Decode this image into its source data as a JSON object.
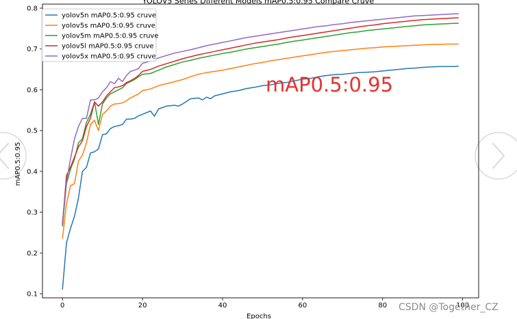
{
  "chart_data": {
    "type": "line",
    "title": "YOLOV5 Series Different Models mAP0.5:0.95 Compare Cruve",
    "xlabel": "Epochs",
    "ylabel": "mAP0.5:0.95",
    "xlim": [
      -5,
      104
    ],
    "ylim": [
      0.09,
      0.81
    ],
    "x_ticks": [
      0,
      20,
      40,
      60,
      80,
      100
    ],
    "y_ticks": [
      0.1,
      0.2,
      0.3,
      0.4,
      0.5,
      0.6,
      0.7,
      0.8
    ],
    "grid": false,
    "legend_position": "top-left",
    "annotation": "mAP0.5:0.95",
    "series": [
      {
        "name": "yolov5n mAP0.5:0.95 cruve",
        "color": "#1f77b4",
        "points": [
          [
            0,
            0.11
          ],
          [
            1,
            0.225
          ],
          [
            2,
            0.26
          ],
          [
            3,
            0.29
          ],
          [
            4,
            0.335
          ],
          [
            5,
            0.4
          ],
          [
            6,
            0.41
          ],
          [
            7,
            0.445
          ],
          [
            8,
            0.448
          ],
          [
            9,
            0.455
          ],
          [
            10,
            0.49
          ],
          [
            11,
            0.492
          ],
          [
            12,
            0.505
          ],
          [
            13,
            0.51
          ],
          [
            14,
            0.512
          ],
          [
            15,
            0.515
          ],
          [
            16,
            0.528
          ],
          [
            17,
            0.528
          ],
          [
            18,
            0.53
          ],
          [
            19,
            0.536
          ],
          [
            20,
            0.54
          ],
          [
            22,
            0.548
          ],
          [
            23,
            0.535
          ],
          [
            24,
            0.553
          ],
          [
            26,
            0.56
          ],
          [
            28,
            0.562
          ],
          [
            29,
            0.56
          ],
          [
            30,
            0.565
          ],
          [
            32,
            0.578
          ],
          [
            34,
            0.58
          ],
          [
            35,
            0.575
          ],
          [
            36,
            0.582
          ],
          [
            37,
            0.578
          ],
          [
            38,
            0.585
          ],
          [
            40,
            0.59
          ],
          [
            42,
            0.595
          ],
          [
            44,
            0.598
          ],
          [
            46,
            0.603
          ],
          [
            48,
            0.606
          ],
          [
            50,
            0.61
          ],
          [
            52,
            0.612
          ],
          [
            54,
            0.616
          ],
          [
            56,
            0.618
          ],
          [
            58,
            0.622
          ],
          [
            60,
            0.626
          ],
          [
            62,
            0.628
          ],
          [
            64,
            0.632
          ],
          [
            66,
            0.635
          ],
          [
            68,
            0.637
          ],
          [
            70,
            0.638
          ],
          [
            72,
            0.64
          ],
          [
            74,
            0.642
          ],
          [
            76,
            0.643
          ],
          [
            78,
            0.644
          ],
          [
            80,
            0.646
          ],
          [
            82,
            0.648
          ],
          [
            84,
            0.65
          ],
          [
            86,
            0.652
          ],
          [
            88,
            0.653
          ],
          [
            90,
            0.655
          ],
          [
            92,
            0.656
          ],
          [
            94,
            0.657
          ],
          [
            96,
            0.657
          ],
          [
            98,
            0.657
          ],
          [
            99,
            0.658
          ]
        ]
      },
      {
        "name": "yolov5s mAP0.5:0.95 cruve",
        "color": "#ff7f0e",
        "points": [
          [
            0,
            0.235
          ],
          [
            1,
            0.32
          ],
          [
            2,
            0.365
          ],
          [
            3,
            0.37
          ],
          [
            4,
            0.425
          ],
          [
            5,
            0.44
          ],
          [
            6,
            0.47
          ],
          [
            7,
            0.515
          ],
          [
            8,
            0.525
          ],
          [
            9,
            0.5
          ],
          [
            10,
            0.54
          ],
          [
            11,
            0.548
          ],
          [
            12,
            0.56
          ],
          [
            13,
            0.565
          ],
          [
            14,
            0.566
          ],
          [
            15,
            0.568
          ],
          [
            16,
            0.573
          ],
          [
            17,
            0.58
          ],
          [
            18,
            0.585
          ],
          [
            19,
            0.59
          ],
          [
            20,
            0.598
          ],
          [
            22,
            0.602
          ],
          [
            24,
            0.61
          ],
          [
            26,
            0.615
          ],
          [
            28,
            0.62
          ],
          [
            30,
            0.625
          ],
          [
            32,
            0.632
          ],
          [
            34,
            0.638
          ],
          [
            36,
            0.642
          ],
          [
            38,
            0.645
          ],
          [
            40,
            0.648
          ],
          [
            42,
            0.652
          ],
          [
            44,
            0.656
          ],
          [
            46,
            0.66
          ],
          [
            48,
            0.664
          ],
          [
            50,
            0.667
          ],
          [
            52,
            0.671
          ],
          [
            54,
            0.674
          ],
          [
            56,
            0.677
          ],
          [
            58,
            0.68
          ],
          [
            60,
            0.683
          ],
          [
            62,
            0.686
          ],
          [
            64,
            0.689
          ],
          [
            66,
            0.692
          ],
          [
            68,
            0.694
          ],
          [
            70,
            0.696
          ],
          [
            72,
            0.698
          ],
          [
            74,
            0.7
          ],
          [
            76,
            0.702
          ],
          [
            78,
            0.703
          ],
          [
            80,
            0.705
          ],
          [
            82,
            0.706
          ],
          [
            84,
            0.707
          ],
          [
            86,
            0.708
          ],
          [
            88,
            0.709
          ],
          [
            90,
            0.71
          ],
          [
            92,
            0.711
          ],
          [
            94,
            0.711
          ],
          [
            96,
            0.712
          ],
          [
            98,
            0.712
          ],
          [
            99,
            0.712
          ]
        ]
      },
      {
        "name": "yolov5m mAP0.5:0.95 cruve",
        "color": "#2ca02c",
        "points": [
          [
            0,
            0.265
          ],
          [
            1,
            0.37
          ],
          [
            2,
            0.405
          ],
          [
            3,
            0.43
          ],
          [
            4,
            0.47
          ],
          [
            5,
            0.48
          ],
          [
            6,
            0.52
          ],
          [
            7,
            0.54
          ],
          [
            8,
            0.57
          ],
          [
            9,
            0.515
          ],
          [
            10,
            0.565
          ],
          [
            11,
            0.58
          ],
          [
            12,
            0.59
          ],
          [
            13,
            0.595
          ],
          [
            14,
            0.6
          ],
          [
            15,
            0.605
          ],
          [
            16,
            0.615
          ],
          [
            17,
            0.62
          ],
          [
            18,
            0.625
          ],
          [
            19,
            0.632
          ],
          [
            20,
            0.638
          ],
          [
            22,
            0.64
          ],
          [
            24,
            0.648
          ],
          [
            26,
            0.656
          ],
          [
            28,
            0.662
          ],
          [
            30,
            0.668
          ],
          [
            32,
            0.672
          ],
          [
            34,
            0.677
          ],
          [
            36,
            0.681
          ],
          [
            38,
            0.685
          ],
          [
            40,
            0.689
          ],
          [
            42,
            0.692
          ],
          [
            44,
            0.696
          ],
          [
            46,
            0.7
          ],
          [
            48,
            0.703
          ],
          [
            50,
            0.706
          ],
          [
            52,
            0.709
          ],
          [
            54,
            0.712
          ],
          [
            56,
            0.716
          ],
          [
            58,
            0.719
          ],
          [
            60,
            0.722
          ],
          [
            62,
            0.725
          ],
          [
            64,
            0.728
          ],
          [
            66,
            0.731
          ],
          [
            68,
            0.734
          ],
          [
            70,
            0.737
          ],
          [
            72,
            0.74
          ],
          [
            74,
            0.742
          ],
          [
            76,
            0.745
          ],
          [
            78,
            0.747
          ],
          [
            80,
            0.749
          ],
          [
            82,
            0.751
          ],
          [
            84,
            0.753
          ],
          [
            86,
            0.755
          ],
          [
            88,
            0.757
          ],
          [
            90,
            0.759
          ],
          [
            92,
            0.76
          ],
          [
            94,
            0.761
          ],
          [
            96,
            0.762
          ],
          [
            98,
            0.763
          ],
          [
            99,
            0.763
          ]
        ]
      },
      {
        "name": "yolov5l mAP0.5:0.95 cruve",
        "color": "#d62728",
        "points": [
          [
            0,
            0.27
          ],
          [
            1,
            0.39
          ],
          [
            2,
            0.41
          ],
          [
            3,
            0.435
          ],
          [
            4,
            0.46
          ],
          [
            5,
            0.475
          ],
          [
            6,
            0.51
          ],
          [
            7,
            0.53
          ],
          [
            8,
            0.57
          ],
          [
            9,
            0.56
          ],
          [
            10,
            0.57
          ],
          [
            11,
            0.585
          ],
          [
            12,
            0.595
          ],
          [
            13,
            0.605
          ],
          [
            14,
            0.607
          ],
          [
            15,
            0.61
          ],
          [
            16,
            0.618
          ],
          [
            17,
            0.622
          ],
          [
            18,
            0.628
          ],
          [
            19,
            0.635
          ],
          [
            20,
            0.645
          ],
          [
            22,
            0.65
          ],
          [
            24,
            0.658
          ],
          [
            26,
            0.664
          ],
          [
            28,
            0.67
          ],
          [
            30,
            0.676
          ],
          [
            32,
            0.681
          ],
          [
            34,
            0.686
          ],
          [
            36,
            0.69
          ],
          [
            38,
            0.694
          ],
          [
            40,
            0.698
          ],
          [
            42,
            0.702
          ],
          [
            44,
            0.706
          ],
          [
            46,
            0.71
          ],
          [
            48,
            0.714
          ],
          [
            50,
            0.717
          ],
          [
            52,
            0.72
          ],
          [
            54,
            0.723
          ],
          [
            56,
            0.727
          ],
          [
            58,
            0.73
          ],
          [
            60,
            0.733
          ],
          [
            62,
            0.736
          ],
          [
            64,
            0.739
          ],
          [
            66,
            0.742
          ],
          [
            68,
            0.745
          ],
          [
            70,
            0.748
          ],
          [
            72,
            0.751
          ],
          [
            74,
            0.754
          ],
          [
            76,
            0.757
          ],
          [
            78,
            0.759
          ],
          [
            80,
            0.762
          ],
          [
            82,
            0.764
          ],
          [
            84,
            0.766
          ],
          [
            86,
            0.768
          ],
          [
            88,
            0.77
          ],
          [
            90,
            0.772
          ],
          [
            92,
            0.773
          ],
          [
            94,
            0.774
          ],
          [
            96,
            0.775
          ],
          [
            98,
            0.776
          ],
          [
            99,
            0.776
          ]
        ]
      },
      {
        "name": "yolov5x mAP0.5:0.95 cruve",
        "color": "#9467bd",
        "points": [
          [
            0,
            0.275
          ],
          [
            1,
            0.375
          ],
          [
            2,
            0.43
          ],
          [
            3,
            0.48
          ],
          [
            4,
            0.51
          ],
          [
            5,
            0.53
          ],
          [
            6,
            0.53
          ],
          [
            7,
            0.575
          ],
          [
            8,
            0.575
          ],
          [
            9,
            0.58
          ],
          [
            10,
            0.595
          ],
          [
            11,
            0.605
          ],
          [
            12,
            0.62
          ],
          [
            13,
            0.615
          ],
          [
            14,
            0.628
          ],
          [
            15,
            0.62
          ],
          [
            16,
            0.635
          ],
          [
            17,
            0.645
          ],
          [
            18,
            0.648
          ],
          [
            19,
            0.652
          ],
          [
            20,
            0.665
          ],
          [
            22,
            0.67
          ],
          [
            24,
            0.678
          ],
          [
            26,
            0.684
          ],
          [
            28,
            0.69
          ],
          [
            30,
            0.694
          ],
          [
            32,
            0.698
          ],
          [
            34,
            0.703
          ],
          [
            36,
            0.708
          ],
          [
            38,
            0.712
          ],
          [
            40,
            0.716
          ],
          [
            42,
            0.72
          ],
          [
            44,
            0.724
          ],
          [
            46,
            0.728
          ],
          [
            48,
            0.731
          ],
          [
            50,
            0.734
          ],
          [
            52,
            0.737
          ],
          [
            54,
            0.74
          ],
          [
            56,
            0.743
          ],
          [
            58,
            0.746
          ],
          [
            60,
            0.749
          ],
          [
            62,
            0.752
          ],
          [
            64,
            0.755
          ],
          [
            66,
            0.757
          ],
          [
            68,
            0.76
          ],
          [
            70,
            0.762
          ],
          [
            72,
            0.765
          ],
          [
            74,
            0.767
          ],
          [
            76,
            0.769
          ],
          [
            78,
            0.771
          ],
          [
            80,
            0.773
          ],
          [
            82,
            0.775
          ],
          [
            84,
            0.777
          ],
          [
            86,
            0.779
          ],
          [
            88,
            0.781
          ],
          [
            90,
            0.782
          ],
          [
            92,
            0.783
          ],
          [
            94,
            0.784
          ],
          [
            96,
            0.785
          ],
          [
            98,
            0.786
          ],
          [
            99,
            0.786
          ]
        ]
      }
    ]
  },
  "watermark": "CSDN @Together_CZ",
  "nav_icons": [
    "chevron-left-icon",
    "chevron-right-icon"
  ]
}
